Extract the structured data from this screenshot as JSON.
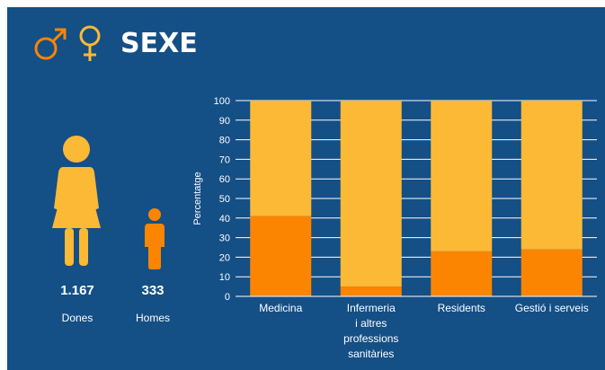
{
  "header": {
    "title": "SEXE",
    "icons": [
      "male-symbol-icon",
      "female-symbol-icon"
    ]
  },
  "colors": {
    "background": "#144f86",
    "women": "#fbb936",
    "men": "#fb8500",
    "text": "#ffffff"
  },
  "stats": {
    "women": {
      "value": "1.167",
      "label": "Dones",
      "icon": "woman-icon"
    },
    "men": {
      "value": "333",
      "label": "Homes",
      "icon": "man-icon"
    }
  },
  "chart_data": {
    "type": "bar",
    "stacked": true,
    "ylabel": "Percentatge",
    "ylim": [
      0,
      100
    ],
    "yticks": [
      0,
      10,
      20,
      30,
      40,
      50,
      60,
      70,
      80,
      90,
      100
    ],
    "grid": true,
    "categories": [
      [
        "Medicina"
      ],
      [
        "Infermeria",
        "i altres",
        "professions",
        "sanitàries"
      ],
      [
        "Residents"
      ],
      [
        "Gestió i serveis"
      ]
    ],
    "series": [
      {
        "values": [
          41,
          5,
          23,
          24
        ],
        "color": "#fb8500"
      },
      {
        "values": [
          59,
          95,
          77,
          76
        ],
        "color": "#fbb936"
      }
    ]
  }
}
